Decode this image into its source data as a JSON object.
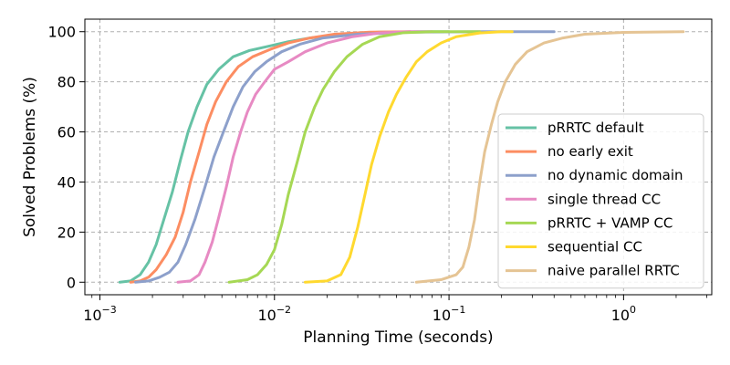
{
  "chart_data": {
    "type": "line",
    "title": "",
    "xlabel": "Planning Time (seconds)",
    "ylabel": "Solved Problems (%)",
    "xscale": "log",
    "xlim": [
      0.00082,
      3.2
    ],
    "ylim": [
      -5,
      105
    ],
    "x_ticks": [
      {
        "value": 0.001,
        "base": "10",
        "exp": "−3"
      },
      {
        "value": 0.01,
        "base": "10",
        "exp": "−2"
      },
      {
        "value": 0.1,
        "base": "10",
        "exp": "−1"
      },
      {
        "value": 1,
        "base": "10",
        "exp": "0"
      }
    ],
    "y_ticks": [
      0,
      20,
      40,
      60,
      80,
      100
    ],
    "grid": true,
    "legend_position": "lower-right",
    "series": [
      {
        "name": "pRRTC default",
        "color": "#66c2a5",
        "points": [
          [
            0.0013,
            0
          ],
          [
            0.0015,
            0.5
          ],
          [
            0.0017,
            3
          ],
          [
            0.0019,
            8
          ],
          [
            0.0021,
            15
          ],
          [
            0.0023,
            24
          ],
          [
            0.0026,
            36
          ],
          [
            0.0029,
            49
          ],
          [
            0.0032,
            60
          ],
          [
            0.0036,
            70
          ],
          [
            0.0041,
            79
          ],
          [
            0.0048,
            85
          ],
          [
            0.0058,
            90
          ],
          [
            0.0072,
            92.5
          ],
          [
            0.009,
            94
          ],
          [
            0.012,
            96
          ],
          [
            0.016,
            97.5
          ],
          [
            0.024,
            99
          ],
          [
            0.04,
            99.8
          ],
          [
            0.07,
            100
          ],
          [
            0.1,
            100
          ]
        ]
      },
      {
        "name": "no early exit",
        "color": "#fc8d62",
        "points": [
          [
            0.0015,
            0
          ],
          [
            0.0017,
            0.5
          ],
          [
            0.0019,
            2
          ],
          [
            0.0021,
            5
          ],
          [
            0.0024,
            11
          ],
          [
            0.0027,
            18
          ],
          [
            0.003,
            28
          ],
          [
            0.0033,
            40
          ],
          [
            0.0037,
            52
          ],
          [
            0.0041,
            63
          ],
          [
            0.0046,
            72
          ],
          [
            0.0053,
            80
          ],
          [
            0.0062,
            86
          ],
          [
            0.0075,
            90
          ],
          [
            0.0095,
            93
          ],
          [
            0.012,
            95.5
          ],
          [
            0.016,
            97.5
          ],
          [
            0.022,
            99
          ],
          [
            0.035,
            99.8
          ],
          [
            0.06,
            100
          ]
        ]
      },
      {
        "name": "no dynamic domain",
        "color": "#8da0cb",
        "points": [
          [
            0.0016,
            0
          ],
          [
            0.0019,
            0.5
          ],
          [
            0.0022,
            2
          ],
          [
            0.0025,
            4
          ],
          [
            0.0028,
            8
          ],
          [
            0.0031,
            15
          ],
          [
            0.0035,
            25
          ],
          [
            0.004,
            38
          ],
          [
            0.0045,
            50
          ],
          [
            0.0051,
            60
          ],
          [
            0.0058,
            70
          ],
          [
            0.0066,
            78
          ],
          [
            0.0077,
            84
          ],
          [
            0.009,
            88
          ],
          [
            0.011,
            92
          ],
          [
            0.014,
            95
          ],
          [
            0.019,
            97.5
          ],
          [
            0.03,
            99
          ],
          [
            0.06,
            99.8
          ],
          [
            0.15,
            100
          ],
          [
            0.4,
            100
          ]
        ]
      },
      {
        "name": "single thread CC",
        "color": "#e78ac3",
        "points": [
          [
            0.0028,
            0
          ],
          [
            0.0033,
            0.5
          ],
          [
            0.0037,
            3
          ],
          [
            0.004,
            8
          ],
          [
            0.0044,
            16
          ],
          [
            0.0048,
            26
          ],
          [
            0.0053,
            38
          ],
          [
            0.0058,
            50
          ],
          [
            0.0064,
            60
          ],
          [
            0.007,
            68
          ],
          [
            0.0078,
            75
          ],
          [
            0.0088,
            80
          ],
          [
            0.01,
            85
          ],
          [
            0.012,
            88
          ],
          [
            0.015,
            92
          ],
          [
            0.02,
            95.5
          ],
          [
            0.028,
            98
          ],
          [
            0.04,
            99.5
          ],
          [
            0.06,
            100
          ],
          [
            0.08,
            100
          ]
        ]
      },
      {
        "name": "pRRTC + VAMP CC",
        "color": "#a6d854",
        "points": [
          [
            0.0055,
            0
          ],
          [
            0.007,
            1
          ],
          [
            0.008,
            3
          ],
          [
            0.009,
            7
          ],
          [
            0.01,
            13
          ],
          [
            0.011,
            23
          ],
          [
            0.012,
            35
          ],
          [
            0.0135,
            48
          ],
          [
            0.015,
            60
          ],
          [
            0.017,
            70
          ],
          [
            0.019,
            77
          ],
          [
            0.022,
            84
          ],
          [
            0.026,
            90
          ],
          [
            0.032,
            95
          ],
          [
            0.04,
            98
          ],
          [
            0.055,
            99.6
          ],
          [
            0.08,
            100
          ],
          [
            0.15,
            100
          ]
        ]
      },
      {
        "name": "sequential CC",
        "color": "#ffd92f",
        "points": [
          [
            0.015,
            0
          ],
          [
            0.02,
            0.5
          ],
          [
            0.024,
            3
          ],
          [
            0.027,
            10
          ],
          [
            0.03,
            22
          ],
          [
            0.033,
            35
          ],
          [
            0.036,
            47
          ],
          [
            0.04,
            58
          ],
          [
            0.045,
            68
          ],
          [
            0.05,
            75
          ],
          [
            0.057,
            82
          ],
          [
            0.065,
            88
          ],
          [
            0.075,
            92
          ],
          [
            0.09,
            95.5
          ],
          [
            0.11,
            98
          ],
          [
            0.15,
            99.5
          ],
          [
            0.2,
            100
          ],
          [
            0.23,
            100
          ]
        ]
      },
      {
        "name": "naive parallel RRTC",
        "color": "#e5c494",
        "points": [
          [
            0.065,
            0
          ],
          [
            0.09,
            1
          ],
          [
            0.11,
            3
          ],
          [
            0.12,
            6
          ],
          [
            0.13,
            14
          ],
          [
            0.14,
            25
          ],
          [
            0.15,
            40
          ],
          [
            0.16,
            52
          ],
          [
            0.175,
            63
          ],
          [
            0.19,
            72
          ],
          [
            0.21,
            80
          ],
          [
            0.24,
            87
          ],
          [
            0.28,
            92
          ],
          [
            0.35,
            95.5
          ],
          [
            0.45,
            97.5
          ],
          [
            0.6,
            99
          ],
          [
            1.0,
            99.7
          ],
          [
            2.2,
            100
          ]
        ]
      }
    ]
  }
}
